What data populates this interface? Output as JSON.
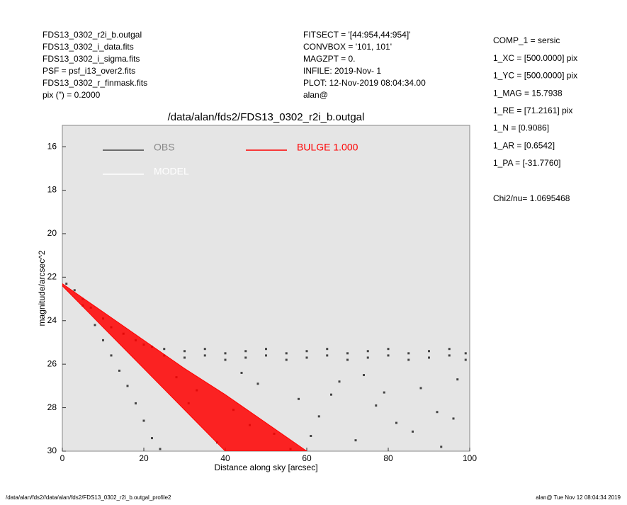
{
  "header": {
    "left": [
      "FDS13_0302_r2i_b.outgal",
      "FDS13_0302_i_data.fits",
      "FDS13_0302_i_sigma.fits",
      "PSF     = psf_i13_over2.fits",
      "FDS13_0302_r_finmask.fits",
      "pix (\") =  0.2000"
    ],
    "middle": [
      "FITSECT = '[44:954,44:954]'",
      "CONVBOX = '101, 101'",
      "MAGZPT  =              0.",
      "INFILE: 2019-Nov- 1",
      "PLOT: 12-Nov-2019 08:04:34.00",
      "alan@"
    ],
    "right": [
      "COMP_1  = sersic",
      "1_XC    = [500.0000] pix",
      "1_YC    = [500.0000] pix",
      "1_MAG   = 15.7938",
      "1_RE    = [71.2161] pix",
      "1_N     = [0.9086]",
      "1_AR    = [0.6542]",
      "1_PA    = [-31.7760]"
    ],
    "chi": "Chi2/nu=      1.0695468"
  },
  "footer": {
    "left": "/data/alan/fds2//data/alan/fds2/FDS13_0302_r2i_b.outgal_profile2",
    "right": "alan@  Tue Nov 12 08:04:34 2019"
  },
  "chart_data": {
    "type": "scatter",
    "title": "/data/alan/fds2/FDS13_0302_r2i_b.outgal",
    "x_label": "Distance along sky [arcsec]",
    "y_label": "magnitude/arcsec^2",
    "xlim": [
      0,
      100
    ],
    "ylim": [
      30,
      15.02
    ],
    "xticks": [
      0,
      20,
      40,
      60,
      80,
      100
    ],
    "yticks": [
      16,
      18,
      20,
      22,
      24,
      26,
      28,
      30
    ],
    "series": [
      {
        "name": "OBS",
        "color": "#444444",
        "x": [
          1,
          3,
          5,
          7,
          10,
          12,
          15,
          18,
          20,
          22,
          5,
          8,
          10,
          12,
          14,
          16,
          18,
          20,
          22,
          24,
          25,
          25,
          30,
          30,
          35,
          35,
          40,
          40,
          45,
          45,
          50,
          50,
          55,
          55,
          60,
          60,
          65,
          65,
          70,
          70,
          75,
          75,
          80,
          80,
          85,
          85,
          90,
          90,
          95,
          95,
          99,
          99,
          28,
          33,
          42,
          48,
          52,
          58,
          63,
          68,
          72,
          77,
          82,
          88,
          93,
          97,
          38,
          46,
          56,
          66,
          74,
          86,
          92,
          31,
          44,
          61,
          79,
          96
        ],
        "values": [
          22.3,
          22.6,
          23,
          23.4,
          23.9,
          24.3,
          24.6,
          24.9,
          25.1,
          25.2,
          23.3,
          24.2,
          24.9,
          25.6,
          26.3,
          27,
          27.8,
          28.6,
          29.4,
          29.9,
          25.3,
          25.6,
          25.4,
          25.7,
          25.3,
          25.6,
          25.5,
          25.8,
          25.4,
          25.7,
          25.3,
          25.6,
          25.5,
          25.8,
          25.4,
          25.7,
          25.3,
          25.6,
          25.5,
          25.8,
          25.4,
          25.7,
          25.3,
          25.6,
          25.5,
          25.8,
          25.4,
          25.7,
          25.3,
          25.6,
          25.5,
          25.8,
          26.6,
          27.2,
          28.1,
          26.9,
          29.2,
          27.6,
          28.4,
          26.8,
          29.5,
          27.9,
          28.7,
          27.1,
          29.8,
          26.7,
          29.6,
          28.8,
          29.9,
          27.4,
          26.5,
          29.1,
          28.2,
          27.8,
          26.4,
          29.3,
          27.3,
          28.5
        ]
      },
      {
        "name": "BULGE  1.000",
        "color": "#ff0000",
        "x": [
          0,
          10,
          20,
          30,
          40,
          50,
          60
        ],
        "values": [
          22.3,
          23.6,
          24.9,
          26.2,
          27.4,
          28.7,
          30
        ],
        "values_outer": [
          22.4,
          24.3,
          26.2,
          28.1,
          30,
          null,
          null
        ]
      },
      {
        "name": "MODEL",
        "color": "#ffffff",
        "x": [],
        "values": []
      }
    ]
  }
}
